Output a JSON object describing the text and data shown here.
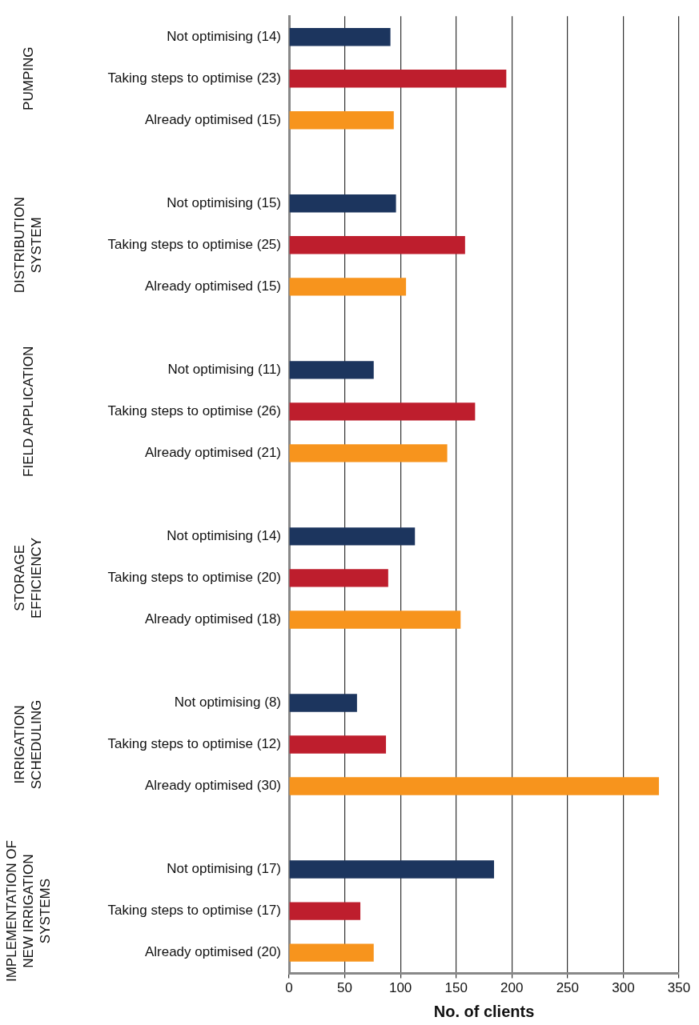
{
  "chart_data": {
    "type": "bar",
    "orientation": "horizontal",
    "xlabel": "No. of clients",
    "categories": [
      "Not optimising (14)",
      "Taking steps to optimise (23)",
      "Already optimised (15)",
      null,
      "Not optimising (15)",
      "Taking steps to optimise (25)",
      "Already optimised (15)",
      null,
      "Not optimising (11)",
      "Taking steps to optimise (26)",
      "Already optimised (21)",
      null,
      "Not optimising (14)",
      "Taking steps to optimise (20)",
      "Already optimised (18)",
      null,
      "Not optimising (8)",
      "Taking steps to optimise (12)",
      "Already optimised (30)",
      null,
      "Not optimising (17)",
      "Taking steps to optimise (17)",
      "Already optimised (20)"
    ],
    "values": [
      91,
      195,
      94,
      null,
      96,
      158,
      105,
      null,
      76,
      167,
      142,
      null,
      113,
      89,
      154,
      null,
      61,
      87,
      332,
      null,
      184,
      64,
      76
    ],
    "colors": [
      "#1c355e",
      "#be1e2d",
      "#f7941d",
      null,
      "#1c355e",
      "#be1e2d",
      "#f7941d",
      null,
      "#1c355e",
      "#be1e2d",
      "#f7941d",
      null,
      "#1c355e",
      "#be1e2d",
      "#f7941d",
      null,
      "#1c355e",
      "#be1e2d",
      "#f7941d",
      null,
      "#1c355e",
      "#be1e2d",
      "#f7941d"
    ],
    "xlim": [
      0,
      350
    ],
    "xticks": [
      0,
      50,
      100,
      150,
      200,
      250,
      300,
      350
    ],
    "grid": "x",
    "annotations": [
      "PUMPING",
      "DISTRIBUTION SYSTEM",
      "FIELD APPLICATION",
      "STORAGE EFFICIENCY",
      "IRRIGATION SCHEDULING",
      "IMPLEMENTATION OF NEW IRRIGATION SYSTEMS"
    ]
  }
}
